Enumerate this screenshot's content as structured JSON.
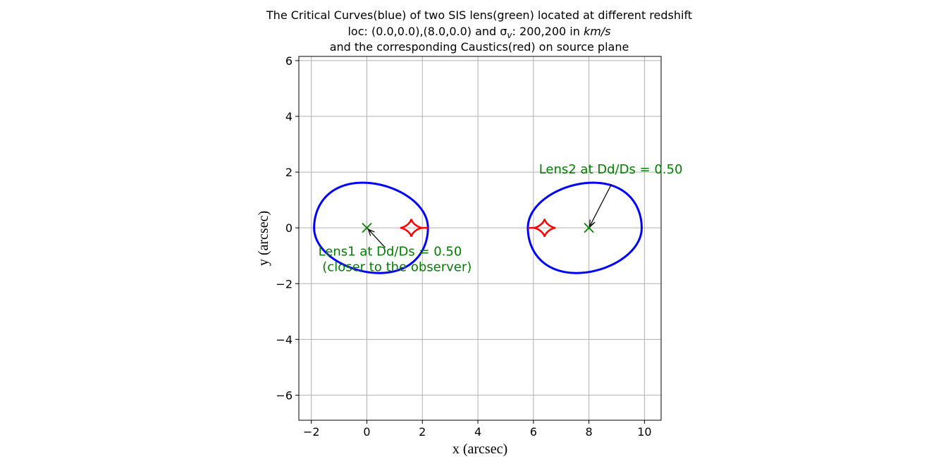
{
  "chart_data": {
    "type": "scatter",
    "title_lines": [
      "The Critical Curves(blue) of two SIS lens(green) located at different redshift",
      "loc: (0.0,0.0),(8.0,0.0) and σ",
      "and the corresponding Caustics(red) on source plane"
    ],
    "title_line2_sub": "v",
    "title_line2_rest": ": 200,200 in ",
    "title_line2_unit": "km/s",
    "xlabel": "x (arcsec)",
    "ylabel": "y (arcsec)",
    "xlim": [
      -2.45,
      10.6
    ],
    "ylim": [
      -6.9,
      6.15
    ],
    "xticks": [
      -2,
      0,
      2,
      4,
      6,
      8,
      10
    ],
    "yticks": [
      -6,
      -4,
      -2,
      0,
      2,
      4,
      6
    ],
    "xtick_labels": [
      "−2",
      "0",
      "2",
      "4",
      "6",
      "8",
      "10"
    ],
    "ytick_labels": [
      "−6",
      "−4",
      "−2",
      "0",
      "2",
      "4",
      "6"
    ],
    "grid": true,
    "colors": {
      "critical_curve": "#0000ff",
      "caustic": "#ff0000",
      "lens": "#008000",
      "annotation": "#008000",
      "grid": "#b0b0b0"
    },
    "lenses": [
      {
        "name": "Lens1",
        "x": 0.0,
        "y": 0.0
      },
      {
        "name": "Lens2",
        "x": 8.0,
        "y": 0.0
      }
    ],
    "critical_curves": [
      {
        "name": "critical curve around Lens1",
        "x_range": [
          -1.9,
          2.2
        ],
        "y_range": [
          -1.62,
          1.62
        ],
        "peak_x": -0.15
      },
      {
        "name": "critical curve around Lens2",
        "x_range": [
          5.8,
          9.9
        ],
        "y_range": [
          -1.62,
          1.62
        ],
        "peak_x": 8.15
      }
    ],
    "caustics": [
      {
        "name": "caustic 1",
        "center_x": 1.6,
        "center_y": 0.0,
        "half_width": 0.4,
        "half_height": 0.32,
        "tail_to_x": 2.2
      },
      {
        "name": "caustic 2",
        "center_x": 6.4,
        "center_y": 0.0,
        "half_width": 0.4,
        "half_height": 0.32,
        "tail_to_x": 5.8
      }
    ],
    "annotations": [
      {
        "lines": [
          "Lens1 at Dd/Ds = 0.50",
          " (closer to the observer)"
        ],
        "point": [
          0.0,
          0.0
        ],
        "text_pos": [
          -1.75,
          -1.0
        ]
      },
      {
        "lines": [
          "Lens2 at Dd/Ds = 0.50"
        ],
        "point": [
          8.0,
          0.0
        ],
        "text_pos": [
          6.2,
          1.95
        ]
      }
    ]
  }
}
